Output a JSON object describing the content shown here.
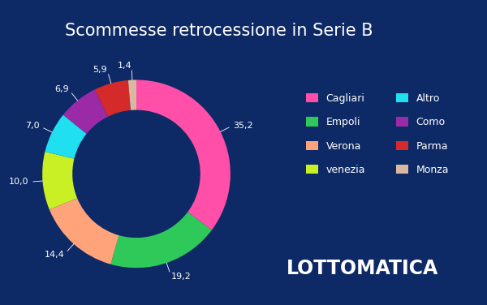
{
  "chart_data": {
    "type": "pie",
    "title": "Scommesse retrocessione in Serie B",
    "categories": [
      "Cagliari",
      "Empoli",
      "Verona",
      "venezia",
      "Altro",
      "Como",
      "Parma",
      "Monza"
    ],
    "values": [
      35.2,
      19.2,
      14.4,
      10.0,
      7.0,
      6.9,
      5.9,
      1.4
    ],
    "value_labels": [
      "35,2",
      "19,2",
      "14,4",
      "10,0",
      "7,0",
      "6,9",
      "5,9",
      "1,4"
    ],
    "colors": [
      "#ff4fa8",
      "#2fc95a",
      "#ffa37a",
      "#c8f025",
      "#1fdff0",
      "#9b2aa6",
      "#d42a2a",
      "#d8b8a0"
    ],
    "data_labels": true,
    "legend": "center right",
    "annotation": "LOTTOMATICA"
  }
}
